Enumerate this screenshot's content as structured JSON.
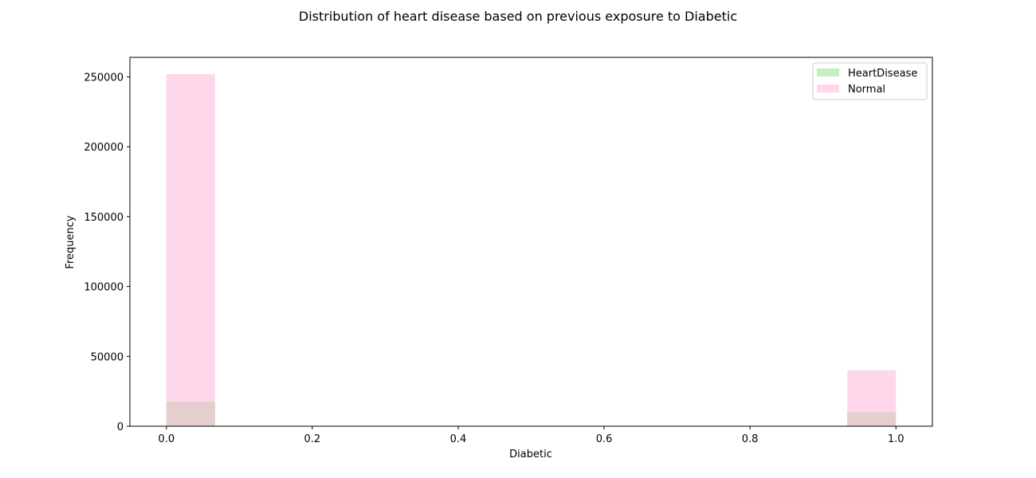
{
  "chart_data": {
    "type": "histogram",
    "title": "Distribution of heart disease based on previous exposure to Diabetic",
    "xlabel": "Diabetic",
    "ylabel": "Frequency",
    "xlim": [
      -0.05,
      1.05
    ],
    "ylim": [
      0,
      264000
    ],
    "xticks": [
      0.0,
      0.2,
      0.4,
      0.6,
      0.8,
      1.0
    ],
    "xtick_labels": [
      "0.0",
      "0.2",
      "0.4",
      "0.6",
      "0.8",
      "1.0"
    ],
    "yticks": [
      0,
      50000,
      100000,
      150000,
      200000,
      250000
    ],
    "ytick_labels": [
      "0",
      "50000",
      "100000",
      "150000",
      "200000",
      "250000"
    ],
    "bin_width": 0.0667,
    "legend_position": "upper right",
    "grid": false,
    "series": [
      {
        "name": "HeartDisease",
        "color": "#90e090",
        "opacity": 0.55,
        "bins": [
          {
            "x0": 0.0,
            "x1": 0.0667,
            "count": 17500
          },
          {
            "x0": 0.9333,
            "x1": 1.0,
            "count": 10000
          }
        ]
      },
      {
        "name": "Normal",
        "color": "#ffb6d9",
        "opacity": 0.55,
        "bins": [
          {
            "x0": 0.0,
            "x1": 0.0667,
            "count": 252000
          },
          {
            "x0": 0.9333,
            "x1": 1.0,
            "count": 40000
          }
        ]
      }
    ]
  }
}
